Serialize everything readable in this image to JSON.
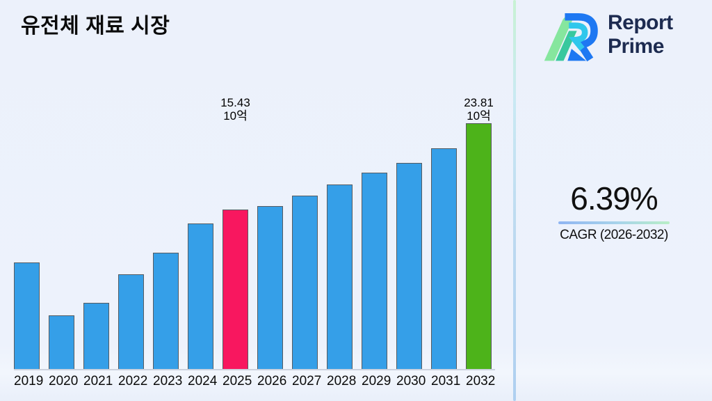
{
  "title": "유전체 재료 시장",
  "logo": {
    "line1": "Report",
    "line2": "Prime"
  },
  "cagr": {
    "value": "6.39%",
    "label": "CAGR (2026-2032)"
  },
  "chart_data": {
    "type": "bar",
    "title": "유전체 재료 시장",
    "xlabel": "",
    "ylabel": "",
    "unit_label": "10억",
    "ylim": [
      0,
      23.81
    ],
    "grid": false,
    "legend": false,
    "categories": [
      "2019",
      "2020",
      "2021",
      "2022",
      "2023",
      "2024",
      "2025",
      "2026",
      "2027",
      "2028",
      "2029",
      "2030",
      "2031",
      "2032"
    ],
    "values": [
      10.3,
      5.2,
      6.4,
      9.2,
      11.3,
      14.1,
      15.43,
      15.8,
      16.8,
      17.9,
      19.0,
      20.0,
      21.4,
      23.81
    ],
    "highlights": [
      {
        "year": "2025",
        "value_label": "15.43",
        "unit": "10억",
        "color": "#f8175f"
      },
      {
        "year": "2032",
        "value_label": "23.81",
        "unit": "10억",
        "color": "#4db31a"
      }
    ]
  },
  "colors": {
    "background": "#ecf1fb",
    "bar_default": "#359fe8",
    "bar_2025": "#f8175f",
    "bar_2032": "#4db31a",
    "bar_border": "#565b61",
    "baseline": "#ccd2de",
    "logo_text": "#1d2b50",
    "logo_blue": "#1e78f2",
    "logo_cyan": "#2fc7ec",
    "logo_green_light": "#86e69e",
    "logo_teal": "#38c89e",
    "divider_top": "#c8f2d3",
    "divider_bottom": "#aecff0",
    "cagr_underline_left": "#8fb5f2",
    "cagr_underline_right": "#b8eec6"
  }
}
